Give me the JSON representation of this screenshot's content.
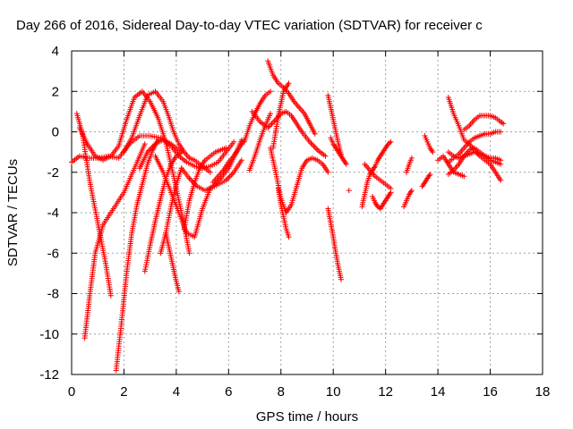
{
  "chart_data": {
    "type": "scatter",
    "title": "Day 266 of 2016, Sidereal Day-to-day VTEC variation (SDTVAR) for receiver c",
    "xlabel": "GPS time / hours",
    "ylabel": "SDTVAR / TECUs",
    "xlim": [
      0,
      18
    ],
    "ylim": [
      -12,
      4
    ],
    "xticks": [
      0,
      2,
      4,
      6,
      8,
      10,
      12,
      14,
      16,
      18
    ],
    "yticks": [
      -12,
      -10,
      -8,
      -6,
      -4,
      -2,
      0,
      2,
      4
    ],
    "grid": true,
    "marker": "+",
    "color": "#ff0000",
    "tracks": [
      {
        "x": [
          0.2,
          0.4,
          0.7,
          1.0,
          1.3,
          1.5
        ],
        "y": [
          0.9,
          0.0,
          -2.5,
          -4.5,
          -6.5,
          -8.1
        ]
      },
      {
        "x": [
          0.5,
          0.7,
          0.9,
          1.2,
          1.6,
          2.0,
          2.4,
          2.8
        ],
        "y": [
          -10.2,
          -8.0,
          -6.0,
          -4.6,
          -3.8,
          -3.0,
          -1.8,
          -0.6
        ]
      },
      {
        "x": [
          1.7,
          1.9,
          2.1,
          2.3,
          2.5,
          2.7,
          2.9,
          3.1,
          3.3
        ],
        "y": [
          -11.8,
          -9.5,
          -7.0,
          -5.0,
          -3.6,
          -2.6,
          -1.6,
          -0.9,
          -0.4
        ]
      },
      {
        "x": [
          0.3,
          0.6,
          0.9,
          1.2,
          1.5,
          1.8,
          2.1,
          2.4,
          2.7,
          3.0,
          3.3,
          3.6,
          3.9,
          4.2,
          4.5
        ],
        "y": [
          0.2,
          -0.6,
          -1.2,
          -1.4,
          -1.2,
          -0.7,
          0.6,
          1.7,
          2.0,
          1.5,
          0.7,
          -0.5,
          -2.2,
          -4.0,
          -6.0
        ]
      },
      {
        "x": [
          2.0,
          2.3,
          2.6,
          2.9,
          3.2,
          3.5,
          3.7,
          3.9,
          4.1,
          4.3,
          4.5,
          4.7,
          4.9,
          5.1,
          5.3
        ],
        "y": [
          -1.0,
          -0.3,
          0.8,
          1.8,
          2.0,
          1.5,
          0.8,
          0.0,
          -0.6,
          -1.0,
          -1.3,
          -1.4,
          -1.6,
          -1.8,
          -2.0
        ]
      },
      {
        "x": [
          2.6,
          2.9,
          3.2,
          3.5,
          3.8,
          4.1,
          4.4,
          4.7,
          5.0,
          5.3,
          5.6,
          5.9,
          6.2
        ],
        "y": [
          -1.8,
          -1.0,
          -0.6,
          -0.4,
          -0.7,
          -1.2,
          -1.5,
          -1.7,
          -1.8,
          -1.7,
          -1.5,
          -1.0,
          -0.5
        ]
      },
      {
        "x": [
          0.0,
          0.3,
          0.6,
          1.0,
          1.4,
          1.8,
          2.2,
          2.6,
          3.0,
          3.4,
          3.8,
          4.2
        ],
        "y": [
          -1.5,
          -1.2,
          -1.3,
          -1.3,
          -1.2,
          -1.3,
          -0.6,
          -0.2,
          -0.2,
          -0.3,
          -0.6,
          -1.0
        ]
      },
      {
        "x": [
          2.8,
          3.0,
          3.2,
          3.4,
          3.6,
          3.8,
          4.0,
          4.2
        ],
        "y": [
          -6.9,
          -5.6,
          -4.4,
          -3.3,
          -2.3,
          -1.6,
          -1.2,
          -1.0
        ]
      },
      {
        "x": [
          3.4,
          3.6,
          3.8,
          4.0,
          4.2
        ],
        "y": [
          -6.0,
          -5.0,
          -3.7,
          -2.6,
          -1.8
        ]
      },
      {
        "x": [
          3.6,
          3.7,
          3.8,
          3.9,
          4.0,
          4.1
        ],
        "y": [
          -5.0,
          -5.6,
          -6.2,
          -6.8,
          -7.4,
          -7.9
        ]
      },
      {
        "x": [
          3.2,
          3.5,
          3.8,
          4.1,
          4.4,
          4.7,
          5.0,
          5.3,
          5.6,
          5.9,
          6.2,
          6.5
        ],
        "y": [
          -1.2,
          -2.0,
          -3.0,
          -4.0,
          -5.0,
          -5.2,
          -3.8,
          -2.8,
          -2.6,
          -2.4,
          -2.0,
          -1.4
        ]
      },
      {
        "x": [
          4.2,
          4.5,
          4.8,
          5.1,
          5.4,
          5.7,
          6.0,
          6.3,
          6.5
        ],
        "y": [
          -1.8,
          -2.3,
          -2.7,
          -2.9,
          -2.7,
          -2.3,
          -1.8,
          -1.0,
          -0.4
        ]
      },
      {
        "x": [
          4.3,
          4.5,
          4.7,
          4.9,
          5.1,
          5.3,
          5.5,
          5.7,
          5.9
        ],
        "y": [
          -4.8,
          -3.4,
          -2.5,
          -1.8,
          -1.4,
          -1.2,
          -1.0,
          -0.9,
          -0.8
        ]
      },
      {
        "x": [
          5.4,
          5.6,
          5.8,
          6.0,
          6.2,
          6.4,
          6.6
        ],
        "y": [
          -2.5,
          -2.2,
          -1.9,
          -1.5,
          -1.2,
          -0.8,
          -0.4
        ]
      },
      {
        "x": [
          6.6,
          6.8,
          7.0,
          7.2,
          7.4,
          7.6
        ],
        "y": [
          -0.5,
          0.3,
          0.9,
          1.4,
          1.8,
          2.0
        ]
      },
      {
        "x": [
          6.8,
          7.0,
          7.2,
          7.4,
          7.6
        ],
        "y": [
          -1.9,
          -1.2,
          -0.4,
          0.3,
          0.9
        ]
      },
      {
        "x": [
          7.5,
          7.7,
          7.9,
          8.1,
          8.3,
          8.5,
          8.7,
          8.9,
          9.1,
          9.3
        ],
        "y": [
          3.5,
          2.8,
          2.4,
          2.2,
          1.9,
          1.5,
          1.2,
          0.9,
          0.4,
          -0.1
        ]
      },
      {
        "x": [
          6.9,
          7.2,
          7.5,
          7.8,
          8.0,
          8.2,
          8.4,
          8.6,
          8.8,
          9.1,
          9.4,
          9.7
        ],
        "y": [
          1.0,
          0.5,
          0.2,
          0.6,
          0.9,
          1.0,
          0.8,
          0.4,
          0.0,
          -0.5,
          -0.9,
          -1.2
        ]
      },
      {
        "x": [
          7.6,
          7.8,
          8.0,
          8.2,
          8.4,
          8.6,
          8.8,
          9.0,
          9.2,
          9.4,
          9.6,
          9.8
        ],
        "y": [
          -0.8,
          -2.0,
          -3.3,
          -4.0,
          -3.6,
          -2.7,
          -1.8,
          -1.4,
          -1.3,
          -1.4,
          -1.6,
          -2.0
        ]
      },
      {
        "x": [
          7.9,
          8.0,
          8.1,
          8.2,
          8.3
        ],
        "y": [
          -2.8,
          -3.6,
          -4.2,
          -4.8,
          -5.2
        ]
      },
      {
        "x": [
          7.7,
          7.9,
          8.1,
          8.3
        ],
        "y": [
          -0.8,
          0.8,
          2.0,
          2.4
        ]
      },
      {
        "x": [
          9.8,
          9.9,
          10.0,
          10.1,
          10.2,
          10.3
        ],
        "y": [
          -3.8,
          -4.5,
          -5.2,
          -6.0,
          -6.7,
          -7.3
        ]
      },
      {
        "x": [
          9.8,
          9.9,
          10.0,
          10.1,
          10.2,
          10.3
        ],
        "y": [
          1.8,
          1.2,
          0.6,
          0.0,
          -0.6,
          -1.1
        ]
      },
      {
        "x": [
          9.9,
          10.0,
          10.1,
          10.2,
          10.3,
          10.4,
          10.5
        ],
        "y": [
          -0.3,
          -0.6,
          -0.8,
          -1.0,
          -1.2,
          -1.4,
          -1.6
        ]
      },
      {
        "x": [
          10.6
        ],
        "y": [
          -2.9
        ]
      },
      {
        "x": [
          11.1,
          11.2,
          11.3,
          11.4,
          11.5,
          11.6,
          11.7,
          11.8,
          11.9,
          12.0,
          12.1,
          12.2
        ],
        "y": [
          -3.7,
          -3.1,
          -2.5,
          -2.1,
          -1.9,
          -1.7,
          -1.4,
          -1.2,
          -1.0,
          -0.8,
          -0.6,
          -0.5
        ]
      },
      {
        "x": [
          11.5,
          11.6,
          11.7,
          11.8,
          11.9,
          12.0,
          12.1,
          12.2
        ],
        "y": [
          -3.2,
          -3.5,
          -3.7,
          -3.8,
          -3.6,
          -3.4,
          -3.2,
          -3.0
        ]
      },
      {
        "x": [
          11.2,
          11.4,
          11.6,
          11.8,
          12.0,
          12.2
        ],
        "y": [
          -1.6,
          -1.9,
          -2.2,
          -2.4,
          -2.6,
          -2.8
        ]
      },
      {
        "x": [
          12.7,
          12.8,
          12.9,
          13.0
        ],
        "y": [
          -3.7,
          -3.4,
          -3.1,
          -2.9
        ]
      },
      {
        "x": [
          12.8,
          12.9,
          13.0
        ],
        "y": [
          -2.0,
          -1.6,
          -1.3
        ]
      },
      {
        "x": [
          13.4,
          13.5,
          13.6,
          13.7
        ],
        "y": [
          -2.7,
          -2.5,
          -2.3,
          -2.1
        ]
      },
      {
        "x": [
          13.5,
          13.6,
          13.7,
          13.8
        ],
        "y": [
          -0.2,
          -0.5,
          -0.8,
          -1.0
        ]
      },
      {
        "x": [
          14.4,
          14.6,
          14.8,
          15.0,
          15.2,
          15.4,
          15.6,
          15.8,
          16.0,
          16.2,
          16.4
        ],
        "y": [
          -1.5,
          -1.3,
          -1.1,
          -0.8,
          -0.5,
          -0.3,
          -0.2,
          -0.1,
          -0.1,
          0.0,
          0.0
        ]
      },
      {
        "x": [
          14.4,
          14.6,
          14.8,
          15.0,
          15.2,
          15.4,
          15.6,
          15.8,
          16.0,
          16.2,
          16.4
        ],
        "y": [
          1.7,
          0.9,
          0.3,
          -0.4,
          -0.6,
          -0.9,
          -1.2,
          -1.4,
          -1.6,
          -2.0,
          -2.4
        ]
      },
      {
        "x": [
          14.4,
          14.6,
          14.8,
          15.0,
          15.2,
          15.4,
          15.6,
          15.8,
          16.0,
          16.2,
          16.4
        ],
        "y": [
          -2.1,
          -1.9,
          -1.6,
          -1.2,
          -0.9,
          -0.8,
          -1.0,
          -1.2,
          -1.4,
          -1.5,
          -1.6
        ]
      },
      {
        "x": [
          14.4,
          14.6,
          14.8,
          15.0,
          15.2,
          15.4,
          15.6,
          15.8,
          16.0,
          16.2,
          16.4
        ],
        "y": [
          -1.0,
          -1.2,
          -1.3,
          -1.2,
          -1.1,
          -1.0,
          -1.1,
          -1.2,
          -1.3,
          -1.3,
          -1.4
        ]
      },
      {
        "x": [
          15.0,
          15.2,
          15.4,
          15.6,
          15.8,
          16.0,
          16.2,
          16.4,
          16.5
        ],
        "y": [
          0.1,
          0.3,
          0.6,
          0.8,
          0.8,
          0.8,
          0.7,
          0.5,
          0.4
        ]
      },
      {
        "x": [
          14.0,
          14.2,
          14.4,
          14.6,
          14.8,
          15.0
        ],
        "y": [
          -1.4,
          -1.2,
          -1.6,
          -2.0,
          -2.1,
          -2.2
        ]
      }
    ]
  }
}
